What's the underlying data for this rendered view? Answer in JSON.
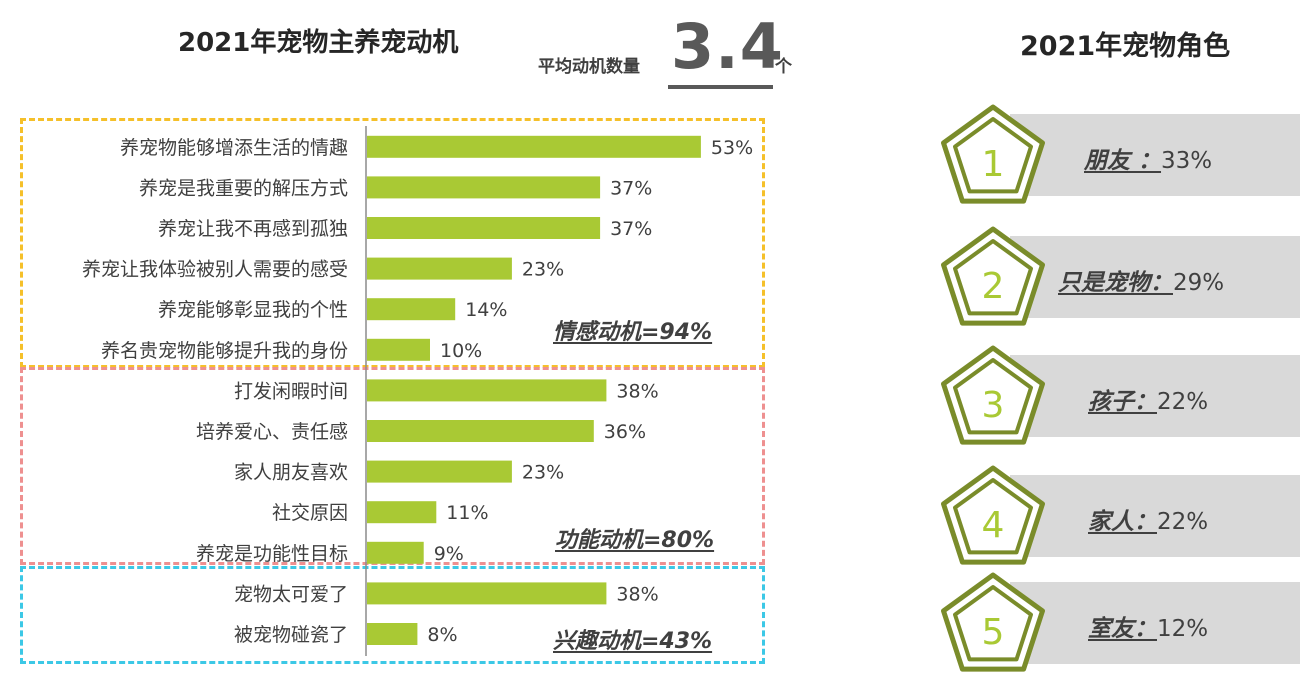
{
  "left_title": "2021年宠物主养宠动机",
  "avg": {
    "label": "平均动机数量",
    "value": "3.4",
    "unit": "个"
  },
  "chart_data": {
    "type": "bar",
    "orientation": "horizontal",
    "title": "2021年宠物主养宠动机",
    "categories": [
      "养宠物能够增添生活的情趣",
      "养宠是我重要的解压方式",
      "养宠让我不再感到孤独",
      "养宠让我体验被别人需要的感受",
      "养宠能够彰显我的个性",
      "养名贵宠物能够提升我的身份",
      "打发闲暇时间",
      "培养爱心、责任感",
      "家人朋友喜欢",
      "社交原因",
      "养宠是功能性目标",
      "宠物太可爱了",
      "被宠物碰瓷了"
    ],
    "values": [
      53,
      37,
      37,
      23,
      14,
      10,
      38,
      36,
      23,
      11,
      9,
      38,
      8
    ],
    "value_labels": [
      "53%",
      "37%",
      "37%",
      "23%",
      "14%",
      "10%",
      "38%",
      "36%",
      "23%",
      "11%",
      "9%",
      "38%",
      "8%"
    ],
    "unit": "%",
    "bar_color": "#a9c934",
    "groups": [
      {
        "label": "情感动机=94%",
        "color": "#f5c02a",
        "start": 0,
        "end": 5
      },
      {
        "label": "功能动机=80%",
        "color": "#ee9090",
        "start": 6,
        "end": 10
      },
      {
        "label": "兴趣动机=43%",
        "color": "#3cc8e6",
        "start": 11,
        "end": 12
      }
    ]
  },
  "right": {
    "title": "2021年宠物角色",
    "roles": [
      {
        "num": "1",
        "name": "朋友  ：",
        "value": "33%"
      },
      {
        "num": "2",
        "name": "只是宠物：",
        "value": "29%"
      },
      {
        "num": "3",
        "name": "孩子：",
        "value": "22%"
      },
      {
        "num": "4",
        "name": "家人：",
        "value": "22%"
      },
      {
        "num": "5",
        "name": "室友：",
        "value": "12%"
      }
    ],
    "pentagon_color": "#7a8c2a",
    "number_color": "#a9c934",
    "band_color": "#d9d9d9"
  }
}
